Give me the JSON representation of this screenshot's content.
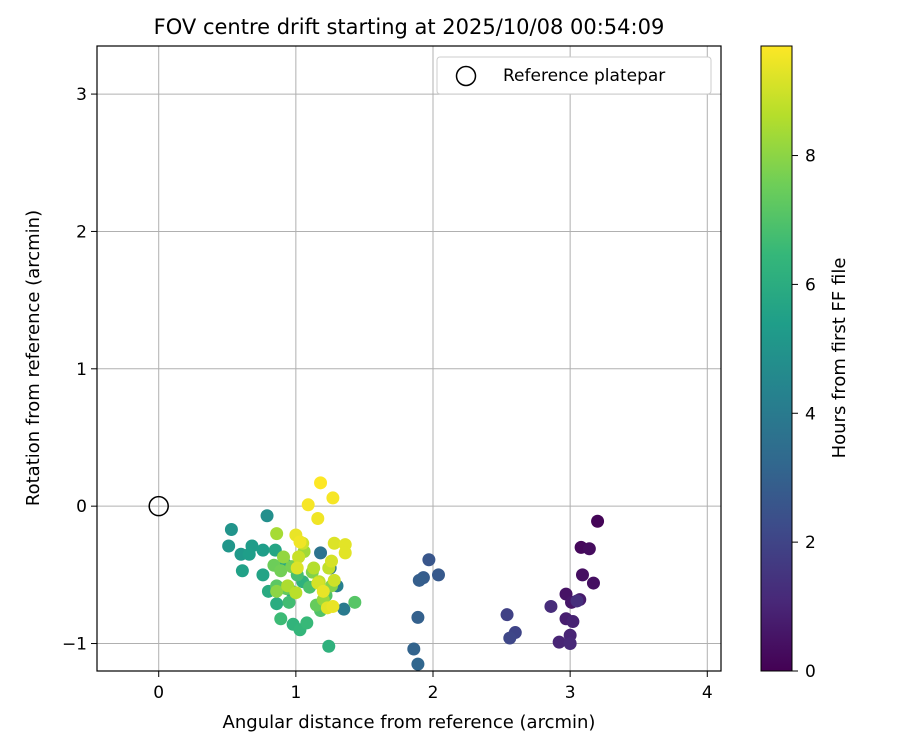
{
  "chart_data": {
    "type": "scatter",
    "title": "FOV centre drift starting at 2025/10/08 00:54:09",
    "xlabel": "Angular distance from reference (arcmin)",
    "ylabel": "Rotation from reference (arcmin)",
    "xlim": [
      -0.45,
      4.1
    ],
    "ylim": [
      -1.2,
      3.35
    ],
    "x_ticks": [
      0,
      1,
      2,
      3,
      4
    ],
    "y_ticks": [
      -1,
      0,
      1,
      2,
      3
    ],
    "x_tick_labels": [
      "0",
      "1",
      "2",
      "3",
      "4"
    ],
    "y_tick_labels": [
      "−1",
      "0",
      "1",
      "2",
      "3"
    ],
    "grid": true,
    "legend": {
      "position": "top-right",
      "label": "Reference platepar"
    },
    "reference_point": {
      "x": 0,
      "y": 0
    },
    "colorbar": {
      "label": "Hours from first FF file",
      "range": [
        0,
        9.7
      ],
      "ticks": [
        0,
        2,
        4,
        6,
        8
      ],
      "tick_labels": [
        "0",
        "2",
        "4",
        "6",
        "8"
      ],
      "colormap": "viridis",
      "stops": [
        "#440154",
        "#482878",
        "#3e4989",
        "#31688e",
        "#26828e",
        "#1f9e89",
        "#35b779",
        "#6ece58",
        "#b5de2b",
        "#fde725"
      ]
    },
    "points": [
      {
        "x": 3.2,
        "y": -0.11,
        "t": 0.1
      },
      {
        "x": 3.08,
        "y": -0.3,
        "t": 0.2
      },
      {
        "x": 3.14,
        "y": -0.31,
        "t": 0.3
      },
      {
        "x": 3.17,
        "y": -0.56,
        "t": 0.4
      },
      {
        "x": 3.09,
        "y": -0.5,
        "t": 0.4
      },
      {
        "x": 2.97,
        "y": -0.64,
        "t": 0.5
      },
      {
        "x": 3.01,
        "y": -0.7,
        "t": 0.6
      },
      {
        "x": 3.07,
        "y": -0.68,
        "t": 0.7
      },
      {
        "x": 2.97,
        "y": -0.82,
        "t": 0.8
      },
      {
        "x": 3.02,
        "y": -0.84,
        "t": 0.9
      },
      {
        "x": 3.0,
        "y": -0.94,
        "t": 1.0
      },
      {
        "x": 2.92,
        "y": -0.99,
        "t": 1.0
      },
      {
        "x": 3.0,
        "y": -1.0,
        "t": 1.1
      },
      {
        "x": 2.86,
        "y": -0.73,
        "t": 1.2
      },
      {
        "x": 3.05,
        "y": -0.69,
        "t": 1.3
      },
      {
        "x": 2.54,
        "y": -0.79,
        "t": 1.9
      },
      {
        "x": 2.6,
        "y": -0.92,
        "t": 2.0
      },
      {
        "x": 2.56,
        "y": -0.96,
        "t": 2.1
      },
      {
        "x": 1.97,
        "y": -0.39,
        "t": 2.6
      },
      {
        "x": 2.04,
        "y": -0.5,
        "t": 2.7
      },
      {
        "x": 1.93,
        "y": -0.52,
        "t": 2.8
      },
      {
        "x": 1.9,
        "y": -0.54,
        "t": 2.9
      },
      {
        "x": 1.89,
        "y": -0.81,
        "t": 3.0
      },
      {
        "x": 1.86,
        "y": -1.04,
        "t": 3.1
      },
      {
        "x": 1.89,
        "y": -1.15,
        "t": 3.2
      },
      {
        "x": 1.18,
        "y": -0.34,
        "t": 3.7
      },
      {
        "x": 1.25,
        "y": -0.45,
        "t": 3.8
      },
      {
        "x": 1.35,
        "y": -0.75,
        "t": 4.0
      },
      {
        "x": 1.3,
        "y": -0.58,
        "t": 4.2
      },
      {
        "x": 0.79,
        "y": -0.07,
        "t": 4.8
      },
      {
        "x": 0.53,
        "y": -0.17,
        "t": 5.0
      },
      {
        "x": 0.51,
        "y": -0.29,
        "t": 5.1
      },
      {
        "x": 0.6,
        "y": -0.35,
        "t": 5.2
      },
      {
        "x": 0.68,
        "y": -0.29,
        "t": 5.3
      },
      {
        "x": 0.76,
        "y": -0.32,
        "t": 5.4
      },
      {
        "x": 0.66,
        "y": -0.35,
        "t": 5.4
      },
      {
        "x": 0.61,
        "y": -0.47,
        "t": 5.5
      },
      {
        "x": 0.76,
        "y": -0.5,
        "t": 5.6
      },
      {
        "x": 0.85,
        "y": -0.32,
        "t": 5.7
      },
      {
        "x": 0.92,
        "y": -0.42,
        "t": 5.8
      },
      {
        "x": 0.8,
        "y": -0.62,
        "t": 5.9
      },
      {
        "x": 0.86,
        "y": -0.71,
        "t": 6.0
      },
      {
        "x": 0.97,
        "y": -0.62,
        "t": 6.1
      },
      {
        "x": 1.05,
        "y": -0.55,
        "t": 6.2
      },
      {
        "x": 1.24,
        "y": -1.02,
        "t": 6.2
      },
      {
        "x": 0.98,
        "y": -0.86,
        "t": 6.3
      },
      {
        "x": 1.03,
        "y": -0.9,
        "t": 6.4
      },
      {
        "x": 1.08,
        "y": -0.85,
        "t": 6.5
      },
      {
        "x": 0.89,
        "y": -0.82,
        "t": 6.6
      },
      {
        "x": 0.95,
        "y": -0.7,
        "t": 6.7
      },
      {
        "x": 1.01,
        "y": -0.5,
        "t": 6.8
      },
      {
        "x": 1.1,
        "y": -0.59,
        "t": 6.9
      },
      {
        "x": 1.18,
        "y": -0.76,
        "t": 7.0
      },
      {
        "x": 1.22,
        "y": -0.65,
        "t": 7.0
      },
      {
        "x": 1.43,
        "y": -0.7,
        "t": 7.1
      },
      {
        "x": 0.86,
        "y": -0.58,
        "t": 7.2
      },
      {
        "x": 0.93,
        "y": -0.6,
        "t": 7.3
      },
      {
        "x": 1.15,
        "y": -0.72,
        "t": 7.4
      },
      {
        "x": 0.84,
        "y": -0.43,
        "t": 7.5
      },
      {
        "x": 0.89,
        "y": -0.47,
        "t": 7.6
      },
      {
        "x": 0.97,
        "y": -0.44,
        "t": 7.7
      },
      {
        "x": 1.12,
        "y": -0.48,
        "t": 7.8
      },
      {
        "x": 1.26,
        "y": -0.58,
        "t": 7.9
      },
      {
        "x": 0.86,
        "y": -0.62,
        "t": 8.0
      },
      {
        "x": 0.91,
        "y": -0.37,
        "t": 8.1
      },
      {
        "x": 1.2,
        "y": -0.68,
        "t": 8.2
      },
      {
        "x": 1.06,
        "y": -0.33,
        "t": 8.3
      },
      {
        "x": 0.86,
        "y": -0.2,
        "t": 8.4
      },
      {
        "x": 0.94,
        "y": -0.58,
        "t": 8.5
      },
      {
        "x": 1.13,
        "y": -0.45,
        "t": 8.6
      },
      {
        "x": 1.0,
        "y": -0.63,
        "t": 8.7
      },
      {
        "x": 1.17,
        "y": -0.55,
        "t": 8.8
      },
      {
        "x": 1.24,
        "y": -0.45,
        "t": 8.8
      },
      {
        "x": 1.02,
        "y": -0.37,
        "t": 8.9
      },
      {
        "x": 1.28,
        "y": -0.54,
        "t": 9.0
      },
      {
        "x": 1.05,
        "y": -0.27,
        "t": 9.0
      },
      {
        "x": 1.26,
        "y": -0.4,
        "t": 9.1
      },
      {
        "x": 1.16,
        "y": -0.56,
        "t": 9.1
      },
      {
        "x": 1.01,
        "y": -0.45,
        "t": 9.2
      },
      {
        "x": 1.28,
        "y": -0.27,
        "t": 9.2
      },
      {
        "x": 1.36,
        "y": -0.28,
        "t": 9.3
      },
      {
        "x": 1.36,
        "y": -0.34,
        "t": 9.3
      },
      {
        "x": 1.23,
        "y": -0.74,
        "t": 9.3
      },
      {
        "x": 1.2,
        "y": -0.62,
        "t": 9.4
      },
      {
        "x": 1.27,
        "y": -0.73,
        "t": 9.4
      },
      {
        "x": 1.0,
        "y": -0.21,
        "t": 9.4
      },
      {
        "x": 1.03,
        "y": -0.26,
        "t": 9.5
      },
      {
        "x": 1.16,
        "y": -0.09,
        "t": 9.5
      },
      {
        "x": 1.09,
        "y": 0.01,
        "t": 9.6
      },
      {
        "x": 1.27,
        "y": 0.06,
        "t": 9.6
      },
      {
        "x": 1.18,
        "y": 0.17,
        "t": 9.7
      }
    ]
  }
}
